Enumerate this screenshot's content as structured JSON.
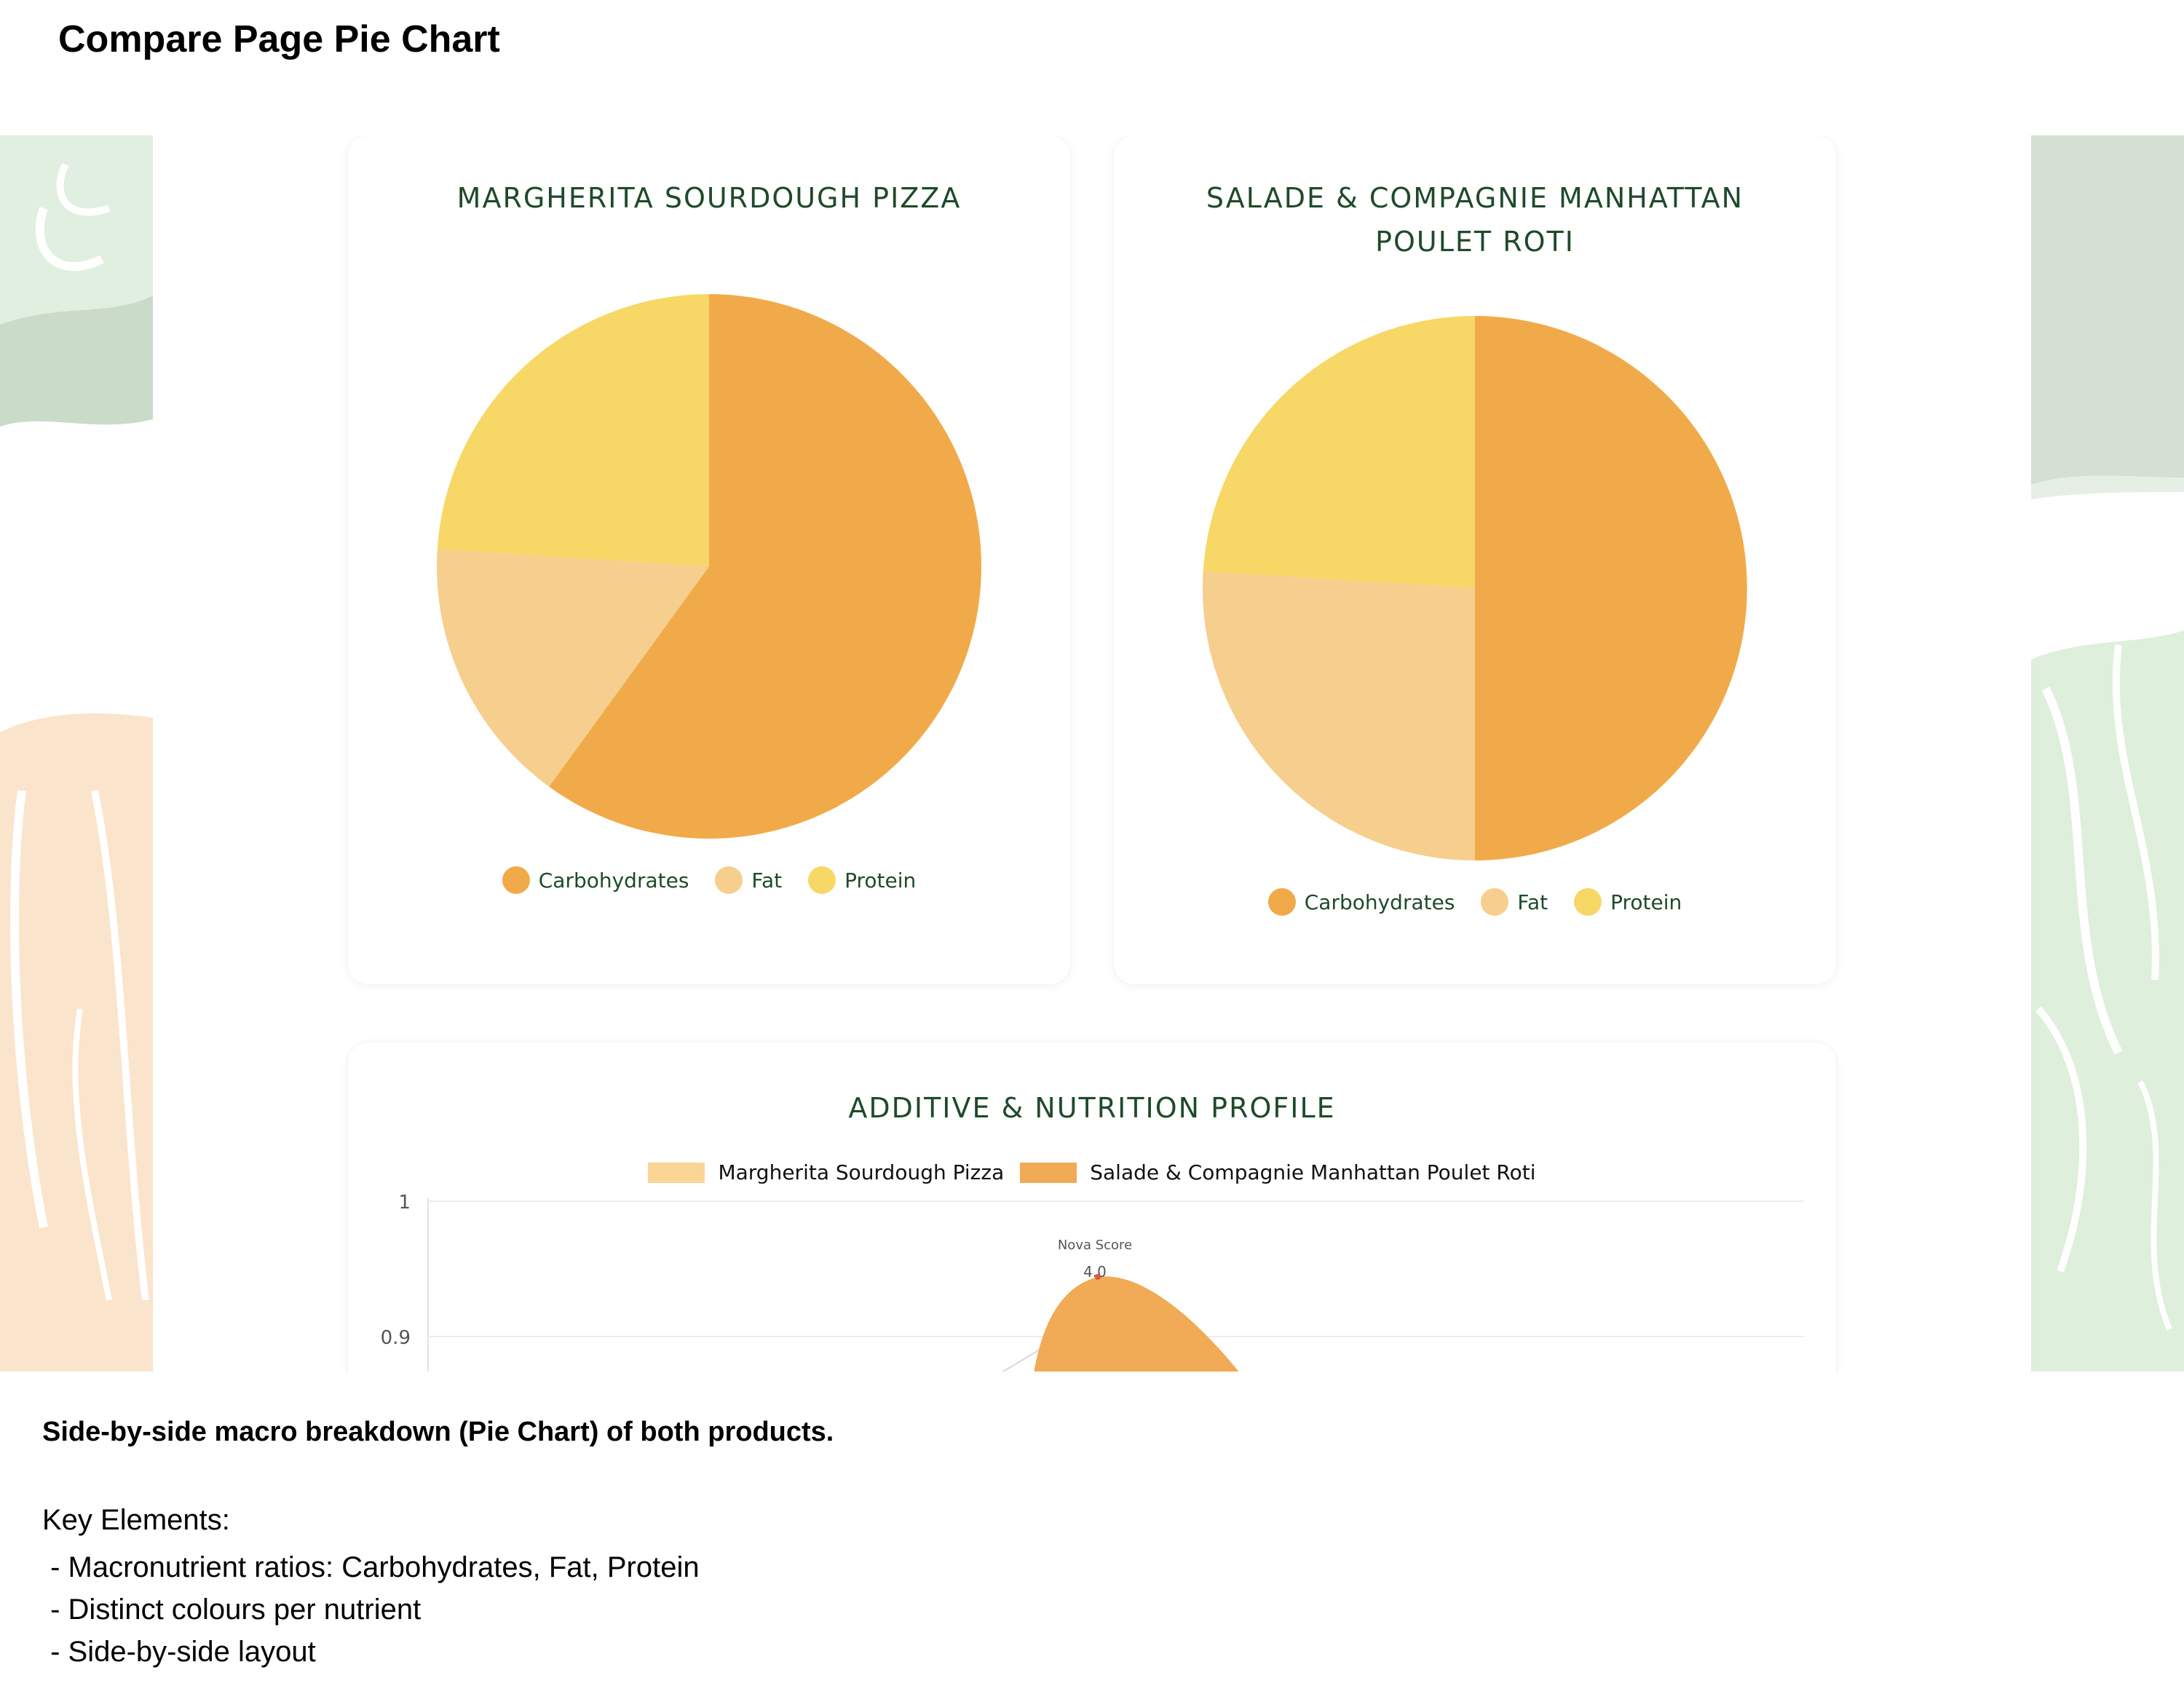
{
  "page_title": "Compare Page Pie Chart",
  "colors": {
    "carbohydrates": "#f1aa4a",
    "fat": "#f6ce8d",
    "protein": "#f7d766",
    "title_green": "#1f4a2a",
    "series_a": "#fad594",
    "series_b": "#f1aa55"
  },
  "app": {
    "cards": [
      {
        "title": "MARGHERITA SOURDOUGH PIZZA",
        "legend": [
          "Carbohydrates",
          "Fat",
          "Protein"
        ]
      },
      {
        "title": "SALADE & COMPAGNIE MANHATTAN POULET ROTI",
        "legend": [
          "Carbohydrates",
          "Fat",
          "Protein"
        ]
      }
    ],
    "profile": {
      "title": "ADDITIVE & NUTRITION PROFILE",
      "legend": [
        "Margherita Sourdough Pizza",
        "Salade & Compagnie Manhattan Poulet Roti"
      ]
    }
  },
  "chart_data": [
    {
      "type": "pie",
      "title": "MARGHERITA SOURDOUGH PIZZA",
      "categories": [
        "Carbohydrates",
        "Fat",
        "Protein"
      ],
      "values": [
        60,
        16,
        24
      ],
      "colors": [
        "#f1aa4a",
        "#f6ce8d",
        "#f7d766"
      ],
      "legend_position": "bottom"
    },
    {
      "type": "pie",
      "title": "SALADE & COMPAGNIE MANHATTAN POULET ROTI",
      "categories": [
        "Carbohydrates",
        "Fat",
        "Protein"
      ],
      "values": [
        50,
        26,
        24
      ],
      "colors": [
        "#f1aa4a",
        "#f6ce8d",
        "#f7d766"
      ],
      "legend_position": "bottom"
    },
    {
      "type": "area",
      "title": "ADDITIVE & NUTRITION PROFILE",
      "series": [
        {
          "name": "Margherita Sourdough Pizza",
          "color": "#fad594"
        },
        {
          "name": "Salade & Compagnie Manhattan Poulet Roti",
          "color": "#f1aa55"
        }
      ],
      "y_ticks": [
        "1",
        "0.9"
      ],
      "ylim": [
        0.9,
        1
      ],
      "point_label": "Nova Score",
      "point_value": "4.0",
      "grid": true,
      "legend_position": "top"
    }
  ],
  "description": {
    "title": "Side-by-side macro breakdown (Pie Chart) of both products.",
    "heading": "Key Elements:",
    "items": [
      " - Macronutrient ratios: Carbohydrates, Fat, Protein",
      " - Distinct colours per nutrient",
      " - Side-by-side layout"
    ]
  }
}
